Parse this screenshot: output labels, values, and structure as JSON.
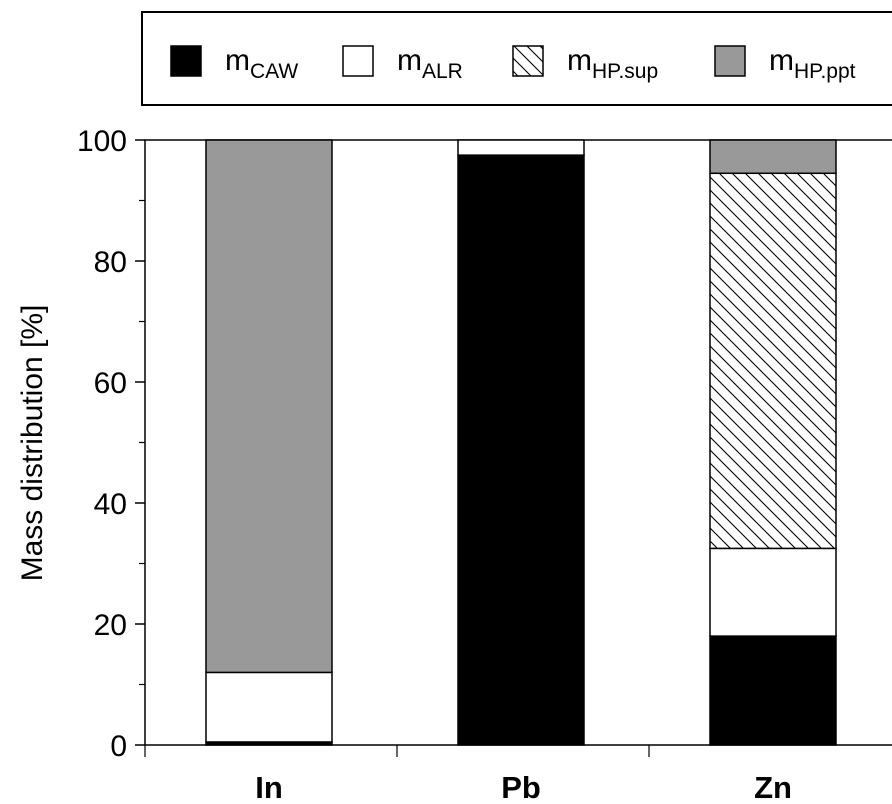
{
  "chart_data": {
    "type": "bar",
    "stacked": true,
    "categories": [
      "In",
      "Pb",
      "Zn"
    ],
    "ylabel": "Mass distribution [%]",
    "ylim": [
      0,
      100
    ],
    "yticks": [
      0,
      20,
      40,
      60,
      80,
      100
    ],
    "legend_position": "top",
    "series": [
      {
        "name": "m",
        "subscript": "CAW",
        "values": [
          0.5,
          97.5,
          18
        ],
        "color": "#000000",
        "pattern": "solid"
      },
      {
        "name": "m",
        "subscript": "ALR",
        "values": [
          11.5,
          2.5,
          14.5
        ],
        "color": "#ffffff",
        "pattern": "solid"
      },
      {
        "name": "m",
        "subscript": "HP.sup",
        "values": [
          0,
          0,
          62
        ],
        "color": "#ffffff",
        "pattern": "hatch"
      },
      {
        "name": "m",
        "subscript": "HP.ppt",
        "values": [
          88,
          0,
          5.5
        ],
        "color": "#999999",
        "pattern": "solid"
      }
    ]
  }
}
